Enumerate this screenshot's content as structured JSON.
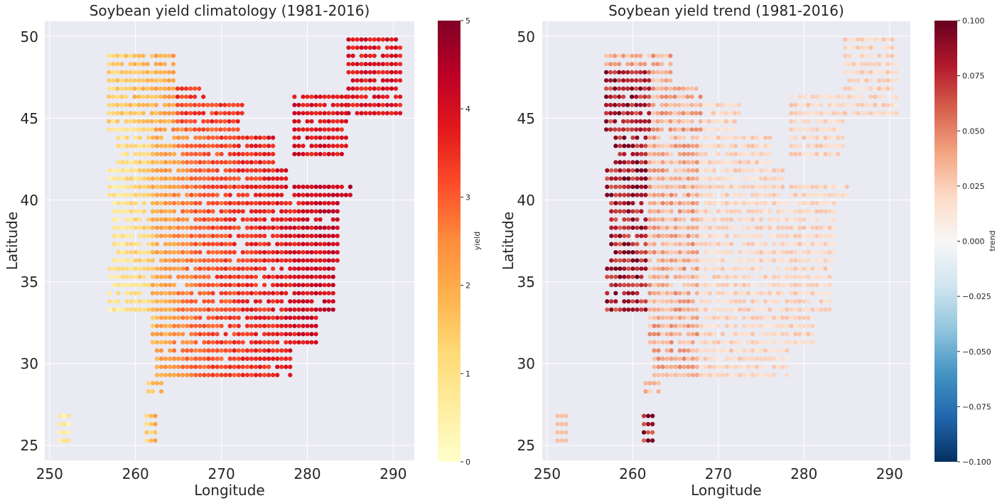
{
  "figure": {
    "panels": [
      {
        "title": "Soybean yield climatology (1981-2016)",
        "xlabel": "Longitude",
        "ylabel": "Latitude",
        "colorbar_label": "yield",
        "colorbar_ticks": [
          "0",
          "1",
          "2",
          "3",
          "4",
          "5"
        ]
      },
      {
        "title": "Soybean yield trend (1981-2016)",
        "xlabel": "Longitude",
        "ylabel": "Latitude",
        "colorbar_label": "trend",
        "colorbar_ticks": [
          "−0.100",
          "−0.075",
          "−0.050",
          "−0.025",
          "0.000",
          "0.025",
          "0.050",
          "0.075",
          "0.100"
        ]
      }
    ],
    "xticks": [
      "250",
      "260",
      "270",
      "280",
      "290"
    ],
    "yticks": [
      "25",
      "30",
      "35",
      "40",
      "45",
      "50"
    ]
  },
  "colors": {
    "axes_background": "#eaeaf2",
    "grid": "#ffffff",
    "climatology_colormap": "YlOrRd",
    "trend_colormap": "RdBu_r"
  },
  "chart_data": [
    {
      "type": "scatter",
      "title": "Soybean yield climatology (1981-2016)",
      "xlabel": "Longitude",
      "ylabel": "Latitude",
      "xlim": [
        249.5,
        292.5
      ],
      "ylim": [
        24,
        51
      ],
      "grid": true,
      "colorbar": {
        "label": "yield",
        "range": [
          0,
          5
        ],
        "colormap": "YlOrRd"
      },
      "description_of_values": "Points on a ~0.5 degree grid over the US; yield lowest (0.5-1.5) in western rows near lon 257-262, rising to 3-4.5 in the east (lon 268-285).",
      "regions": [
        {
          "lon_range": [
            256.9,
            264.5
          ],
          "lat_range": [
            44.3,
            48.8
          ],
          "yield_approx": 1.3
        },
        {
          "lon_range": [
            264.6,
            272.5
          ],
          "lat_range": [
            45.3,
            47.8
          ],
          "yield_approx": 3.5
        },
        {
          "lon_range": [
            257.5,
            262.0
          ],
          "lat_range": [
            33.3,
            42.2
          ],
          "yield_approx": 0.8
        },
        {
          "lon_range": [
            262.0,
            268.0
          ],
          "lat_range": [
            30.3,
            42.2
          ],
          "yield_approx": 2.5
        },
        {
          "lon_range": [
            268.0,
            284.0
          ],
          "lat_range": [
            30.8,
            41.8
          ],
          "yield_approx": 3.6
        },
        {
          "lon_range": [
            280.0,
            291.0
          ],
          "lat_range": [
            45.3,
            49.8
          ],
          "yield_approx": 3.8
        },
        {
          "lon_range": [
            251.2,
            252.2
          ],
          "lat_range": [
            25.3,
            26.3
          ],
          "yield_approx": 0.6
        }
      ]
    },
    {
      "type": "scatter",
      "title": "Soybean yield trend (1981-2016)",
      "xlabel": "Longitude",
      "ylabel": "Latitude",
      "xlim": [
        249.5,
        292.5
      ],
      "ylim": [
        24,
        51
      ],
      "grid": true,
      "colorbar": {
        "label": "trend",
        "range": [
          -0.1,
          0.1
        ],
        "colormap": "RdBu_r"
      },
      "description_of_values": "Same grid points; trend mostly small positive (0.01-0.03); strongest positive (0.05-0.1) in the western band lon 257-262.",
      "regions": [
        {
          "lon_range": [
            256.9,
            262.0
          ],
          "lat_range": [
            33.3,
            48.8
          ],
          "trend_approx": 0.07
        },
        {
          "lon_range": [
            262.0,
            268.0
          ],
          "lat_range": [
            30.3,
            48.8
          ],
          "trend_approx": 0.035
        },
        {
          "lon_range": [
            268.0,
            291.0
          ],
          "lat_range": [
            25.3,
            49.8
          ],
          "trend_approx": 0.015
        }
      ]
    }
  ]
}
